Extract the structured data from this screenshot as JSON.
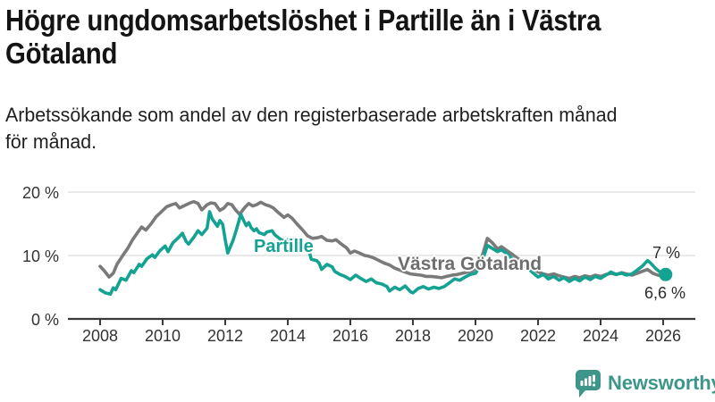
{
  "chart_data": {
    "type": "line",
    "title": "Högre ungdomsarbetslöshet i Partille än i Västra\nGötaland",
    "subtitle": "Arbetssökande som andel av den registerbaserade arbetskraften månad\nför månad.",
    "x_axis": {
      "tick_values": [
        2008,
        2010,
        2012,
        2014,
        2016,
        2018,
        2020,
        2022,
        2024,
        2026
      ],
      "tick_labels": [
        "2008",
        "2010",
        "2012",
        "2014",
        "2016",
        "2018",
        "2020",
        "2022",
        "2024",
        "2026"
      ],
      "range": [
        2007.9,
        2027.0
      ]
    },
    "y_axis": {
      "tick_values": [
        0,
        10,
        20
      ],
      "tick_labels": [
        "0 %",
        "10 %",
        "20 %"
      ],
      "gridlines": [
        10,
        20
      ],
      "range": [
        0,
        21
      ],
      "unit": "%"
    },
    "grid_color": "#E2E2E2",
    "axis_color": "#3A3A3A",
    "legend_position": "inline-labels",
    "series": [
      {
        "name": "Västra Götaland",
        "color": "#7A7A7A",
        "latest_label": "6,6 %",
        "points": [
          [
            2008,
            8.3
          ],
          [
            2008.13,
            7.6
          ],
          [
            2008.29,
            6.6
          ],
          [
            2008.42,
            7.2
          ],
          [
            2008.54,
            8.6
          ],
          [
            2008.71,
            9.9
          ],
          [
            2008.88,
            11.1
          ],
          [
            2009.04,
            12.5
          ],
          [
            2009.21,
            13.7
          ],
          [
            2009.33,
            14.5
          ],
          [
            2009.46,
            14
          ],
          [
            2009.63,
            15
          ],
          [
            2009.79,
            16.1
          ],
          [
            2009.96,
            16.9
          ],
          [
            2010.13,
            17.7
          ],
          [
            2010.29,
            18
          ],
          [
            2010.42,
            18.2
          ],
          [
            2010.54,
            17.5
          ],
          [
            2010.71,
            17.9
          ],
          [
            2010.88,
            18.3
          ],
          [
            2011,
            18.5
          ],
          [
            2011.13,
            18.2
          ],
          [
            2011.25,
            17.2
          ],
          [
            2011.42,
            18
          ],
          [
            2011.54,
            18.3
          ],
          [
            2011.67,
            18.2
          ],
          [
            2011.83,
            17.1
          ],
          [
            2011.96,
            17.5
          ],
          [
            2012.08,
            18.2
          ],
          [
            2012.21,
            18
          ],
          [
            2012.33,
            17.2
          ],
          [
            2012.46,
            16.5
          ],
          [
            2012.63,
            17.6
          ],
          [
            2012.75,
            18.2
          ],
          [
            2012.88,
            17.8
          ],
          [
            2013,
            18
          ],
          [
            2013.13,
            18.4
          ],
          [
            2013.29,
            18
          ],
          [
            2013.42,
            17.8
          ],
          [
            2013.54,
            17.5
          ],
          [
            2013.71,
            16.7
          ],
          [
            2013.88,
            16
          ],
          [
            2014,
            16.4
          ],
          [
            2014.13,
            15.9
          ],
          [
            2014.29,
            15
          ],
          [
            2014.46,
            14.1
          ],
          [
            2014.63,
            13.1
          ],
          [
            2014.79,
            12.7
          ],
          [
            2014.96,
            12.8
          ],
          [
            2015.08,
            13
          ],
          [
            2015.25,
            12.4
          ],
          [
            2015.42,
            12.3
          ],
          [
            2015.54,
            12.5
          ],
          [
            2015.71,
            11.8
          ],
          [
            2015.88,
            11.2
          ],
          [
            2016,
            10.4
          ],
          [
            2016.13,
            10.7
          ],
          [
            2016.29,
            10.4
          ],
          [
            2016.46,
            10
          ],
          [
            2016.58,
            9.9
          ],
          [
            2016.75,
            9.6
          ],
          [
            2016.92,
            9.2
          ],
          [
            2017.08,
            8.8
          ],
          [
            2017.25,
            8.5
          ],
          [
            2017.42,
            8
          ],
          [
            2017.58,
            7.7
          ],
          [
            2017.75,
            7.4
          ],
          [
            2017.92,
            7.1
          ],
          [
            2018.08,
            7
          ],
          [
            2018.25,
            6.9
          ],
          [
            2018.42,
            6.7
          ],
          [
            2018.58,
            6.7
          ],
          [
            2018.75,
            6.6
          ],
          [
            2018.92,
            6.5
          ],
          [
            2019.08,
            6.7
          ],
          [
            2019.25,
            6.9
          ],
          [
            2019.42,
            7
          ],
          [
            2019.58,
            7.2
          ],
          [
            2019.75,
            7.4
          ],
          [
            2019.92,
            7.6
          ],
          [
            2020.08,
            8.1
          ],
          [
            2020.25,
            10.5
          ],
          [
            2020.38,
            12.7
          ],
          [
            2020.54,
            12
          ],
          [
            2020.71,
            11
          ],
          [
            2020.83,
            11.4
          ],
          [
            2021,
            10.8
          ],
          [
            2021.17,
            10.2
          ],
          [
            2021.33,
            9.6
          ],
          [
            2021.5,
            9.1
          ],
          [
            2021.67,
            8.5
          ],
          [
            2021.83,
            7.9
          ],
          [
            2022,
            7.4
          ],
          [
            2022.17,
            7.1
          ],
          [
            2022.33,
            6.9
          ],
          [
            2022.5,
            7.1
          ],
          [
            2022.67,
            6.8
          ],
          [
            2022.83,
            6.6
          ],
          [
            2023,
            6.4
          ],
          [
            2023.17,
            6.7
          ],
          [
            2023.33,
            6.5
          ],
          [
            2023.5,
            6.8
          ],
          [
            2023.67,
            6.6
          ],
          [
            2023.83,
            6.9
          ],
          [
            2024,
            6.7
          ],
          [
            2024.17,
            7
          ],
          [
            2024.33,
            7.2
          ],
          [
            2024.5,
            7
          ],
          [
            2024.67,
            7.3
          ],
          [
            2024.83,
            7.1
          ],
          [
            2025,
            6.9
          ],
          [
            2025.17,
            7.2
          ],
          [
            2025.33,
            7.5
          ],
          [
            2025.5,
            7.8
          ],
          [
            2025.67,
            7.2
          ],
          [
            2025.83,
            6.9
          ],
          [
            2026.08,
            6.6
          ]
        ]
      },
      {
        "name": "Partille",
        "color": "#14A292",
        "latest_label": "7 %",
        "end_dot": true,
        "points": [
          [
            2008,
            4.6
          ],
          [
            2008.17,
            4.1
          ],
          [
            2008.33,
            3.9
          ],
          [
            2008.42,
            4.9
          ],
          [
            2008.5,
            4.6
          ],
          [
            2008.67,
            6.4
          ],
          [
            2008.83,
            6.1
          ],
          [
            2009,
            7.6
          ],
          [
            2009.08,
            7.3
          ],
          [
            2009.25,
            8.6
          ],
          [
            2009.33,
            8.3
          ],
          [
            2009.5,
            9.5
          ],
          [
            2009.67,
            10.1
          ],
          [
            2009.75,
            9.7
          ],
          [
            2009.92,
            10.8
          ],
          [
            2010.08,
            11.5
          ],
          [
            2010.17,
            10.6
          ],
          [
            2010.33,
            12
          ],
          [
            2010.5,
            12.8
          ],
          [
            2010.63,
            13.5
          ],
          [
            2010.75,
            12.2
          ],
          [
            2010.83,
            11.8
          ],
          [
            2011,
            12.9
          ],
          [
            2011.13,
            13.9
          ],
          [
            2011.25,
            13.3
          ],
          [
            2011.42,
            14.3
          ],
          [
            2011.5,
            16.9
          ],
          [
            2011.58,
            15.8
          ],
          [
            2011.75,
            14.6
          ],
          [
            2011.83,
            15.5
          ],
          [
            2011.92,
            14.9
          ],
          [
            2012,
            12.5
          ],
          [
            2012.08,
            10.4
          ],
          [
            2012.25,
            12.4
          ],
          [
            2012.33,
            13.6
          ],
          [
            2012.5,
            16.5
          ],
          [
            2012.58,
            15.6
          ],
          [
            2012.67,
            14.7
          ],
          [
            2012.75,
            15.2
          ],
          [
            2012.83,
            14.4
          ],
          [
            2012.92,
            13.9
          ],
          [
            2013,
            14.2
          ],
          [
            2013.08,
            13.6
          ],
          [
            2013.25,
            13.3
          ],
          [
            2013.33,
            13.7
          ],
          [
            2013.5,
            13.9
          ],
          [
            2013.58,
            13.3
          ],
          [
            2013.75,
            12.6
          ],
          [
            2013.92,
            12.2
          ],
          [
            2014,
            12.5
          ],
          [
            2014.17,
            11.9
          ],
          [
            2014.25,
            11.4
          ],
          [
            2014.42,
            11.6
          ],
          [
            2014.5,
            11.1
          ],
          [
            2014.67,
            10.9
          ],
          [
            2014.75,
            9.4
          ],
          [
            2014.92,
            9.2
          ],
          [
            2015,
            8.8
          ],
          [
            2015.08,
            7.8
          ],
          [
            2015.25,
            8.6
          ],
          [
            2015.42,
            8.2
          ],
          [
            2015.5,
            7.5
          ],
          [
            2015.67,
            7
          ],
          [
            2015.83,
            6.7
          ],
          [
            2016,
            6.2
          ],
          [
            2016.17,
            6.9
          ],
          [
            2016.33,
            6.4
          ],
          [
            2016.5,
            5.9
          ],
          [
            2016.67,
            6.3
          ],
          [
            2016.83,
            5.7
          ],
          [
            2017,
            5.5
          ],
          [
            2017.17,
            5.1
          ],
          [
            2017.25,
            4.4
          ],
          [
            2017.42,
            5
          ],
          [
            2017.58,
            4.6
          ],
          [
            2017.75,
            5.2
          ],
          [
            2017.92,
            4.3
          ],
          [
            2018,
            4.1
          ],
          [
            2018.17,
            4.8
          ],
          [
            2018.33,
            5.1
          ],
          [
            2018.5,
            4.7
          ],
          [
            2018.67,
            5
          ],
          [
            2018.83,
            4.8
          ],
          [
            2019,
            5.1
          ],
          [
            2019.17,
            5.7
          ],
          [
            2019.33,
            6.3
          ],
          [
            2019.5,
            6.1
          ],
          [
            2019.67,
            6.6
          ],
          [
            2019.83,
            7
          ],
          [
            2020,
            7.2
          ],
          [
            2020.17,
            8.4
          ],
          [
            2020.38,
            11.6
          ],
          [
            2020.54,
            11.1
          ],
          [
            2020.71,
            10.6
          ],
          [
            2020.83,
            10.9
          ],
          [
            2021,
            10.3
          ],
          [
            2021.17,
            9.5
          ],
          [
            2021.33,
            8.9
          ],
          [
            2021.5,
            8.5
          ],
          [
            2021.67,
            8
          ],
          [
            2021.83,
            7.3
          ],
          [
            2022,
            6.6
          ],
          [
            2022.17,
            7
          ],
          [
            2022.33,
            6.3
          ],
          [
            2022.5,
            6.7
          ],
          [
            2022.67,
            6.1
          ],
          [
            2022.83,
            6.5
          ],
          [
            2023,
            5.9
          ],
          [
            2023.17,
            6.4
          ],
          [
            2023.33,
            6
          ],
          [
            2023.5,
            6.6
          ],
          [
            2023.67,
            6.2
          ],
          [
            2023.83,
            6.7
          ],
          [
            2024,
            6.4
          ],
          [
            2024.17,
            6.9
          ],
          [
            2024.33,
            7.4
          ],
          [
            2024.5,
            7
          ],
          [
            2024.67,
            7.2
          ],
          [
            2024.83,
            6.9
          ],
          [
            2025,
            7.1
          ],
          [
            2025.17,
            7.7
          ],
          [
            2025.33,
            8.3
          ],
          [
            2025.5,
            9.2
          ],
          [
            2025.58,
            8.9
          ],
          [
            2025.75,
            8
          ],
          [
            2025.92,
            7.3
          ],
          [
            2026.08,
            7
          ]
        ]
      }
    ],
    "annotations": [
      {
        "text": "7 %",
        "series": "Partille",
        "position": "above-end"
      },
      {
        "text": "6,6 %",
        "series": "Västra Götaland",
        "position": "below-end"
      }
    ]
  },
  "series_labels": {
    "partille": "Partille",
    "vastra_gotaland": "Västra Götaland"
  },
  "branding": {
    "logo_text": "Newsworthy",
    "logo_icon": "newsworthy-chart-bubble-icon",
    "logo_color": "#3E968B"
  }
}
